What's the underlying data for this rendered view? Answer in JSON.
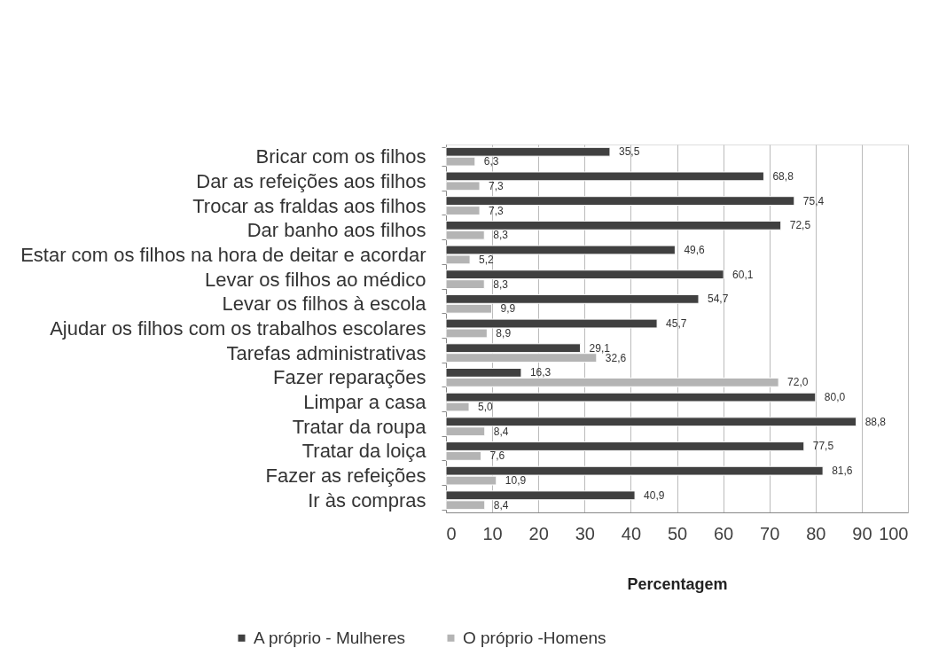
{
  "chart_data": {
    "type": "bar",
    "orientation": "horizontal",
    "xlabel": "Percentagem",
    "categories": [
      "Bricar com os filhos",
      "Dar as refeições aos filhos",
      "Trocar as fraldas aos filhos",
      "Dar banho aos filhos",
      "Estar com os filhos na hora de deitar e acordar",
      "Levar os filhos ao médico",
      "Levar os filhos à escola",
      "Ajudar os filhos com os trabalhos escolares",
      "Tarefas administrativas",
      "Fazer reparações",
      "Limpar a casa",
      "Tratar da roupa",
      "Tratar da loiça",
      "Fazer as refeições",
      "Ir às compras"
    ],
    "series": [
      {
        "name": "A próprio - Mulheres",
        "color": "#404040",
        "values": [
          35.5,
          68.8,
          75.4,
          72.5,
          49.6,
          60.1,
          54.7,
          45.7,
          29.1,
          16.3,
          80.0,
          88.8,
          77.5,
          81.6,
          40.9
        ],
        "value_labels": [
          "35,5",
          "68,8",
          "75,4",
          "72,5",
          "49,6",
          "60,1",
          "54,7",
          "45,7",
          "29,1",
          "16,3",
          "80,0",
          "88,8",
          "77,5",
          "81,6",
          "40,9"
        ]
      },
      {
        "name": "O próprio -Homens",
        "color": "#b4b4b4",
        "values": [
          6.3,
          7.3,
          7.3,
          8.3,
          5.2,
          8.3,
          9.9,
          8.9,
          32.6,
          72.0,
          5.0,
          8.4,
          7.6,
          10.9,
          8.4
        ],
        "value_labels": [
          "6,3",
          "7,3",
          "7,3",
          "8,3",
          "5,2",
          "8,3",
          "9,9",
          "8,9",
          "32,6",
          "72,0",
          "5,0",
          "8,4",
          "7,6",
          "10,9",
          "8,4"
        ]
      }
    ],
    "xlim": [
      0,
      100
    ],
    "xticks": [
      0,
      10,
      20,
      30,
      40,
      50,
      60,
      70,
      80,
      90,
      100
    ],
    "grid": "x",
    "legend": "bottom"
  }
}
